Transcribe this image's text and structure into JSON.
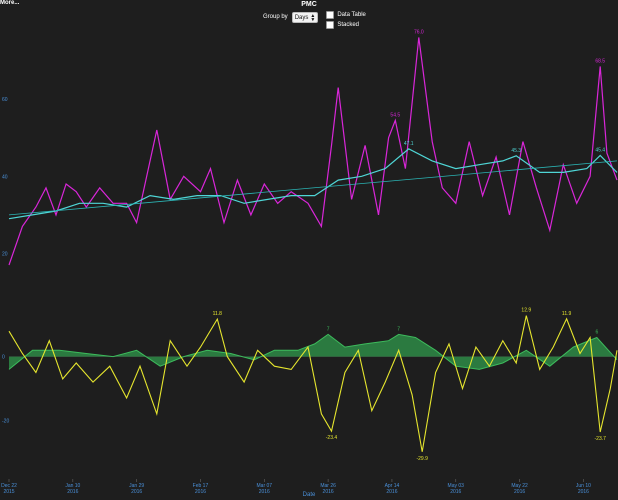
{
  "toolbar": {
    "more_label": "More...",
    "title": "PMC",
    "group_by_label": "Group by",
    "group_by_value": "Days",
    "data_table_label": "Data Table",
    "stacked_label": "Stacked"
  },
  "chart_data": {
    "type": "line",
    "title": "PMC",
    "xlabel": "Date",
    "ylabel": "",
    "x_ticks": [
      {
        "date": "2015-12-22",
        "label": "Dec 22",
        "sub": "2015"
      },
      {
        "date": "2016-01-10",
        "label": "Jan 10",
        "sub": "2016"
      },
      {
        "date": "2016-01-29",
        "label": "Jan 29",
        "sub": "2016"
      },
      {
        "date": "2016-02-17",
        "label": "Feb 17",
        "sub": "2016"
      },
      {
        "date": "2016-03-07",
        "label": "Mar 07",
        "sub": "2016"
      },
      {
        "date": "2016-03-26",
        "label": "Mar 26",
        "sub": "2016"
      },
      {
        "date": "2016-04-14",
        "label": "Apr 14",
        "sub": "2016"
      },
      {
        "date": "2016-05-03",
        "label": "May 03",
        "sub": "2016"
      },
      {
        "date": "2016-05-22",
        "label": "May 22",
        "sub": "2016"
      },
      {
        "date": "2016-06-10",
        "label": "Jun 10",
        "sub": "2016"
      }
    ],
    "x_range": [
      "2015-12-22",
      "2016-06-20"
    ],
    "upper_panel": {
      "ylim": [
        10,
        80
      ],
      "y_ticks": [
        20,
        40,
        60
      ],
      "series": [
        {
          "color": "#d926d9",
          "points": [
            [
              "2015-12-22",
              17
            ],
            [
              "2015-12-26",
              27
            ],
            [
              "2015-12-30",
              32
            ],
            [
              "2016-01-02",
              37
            ],
            [
              "2016-01-05",
              30
            ],
            [
              "2016-01-08",
              38
            ],
            [
              "2016-01-11",
              36
            ],
            [
              "2016-01-14",
              32
            ],
            [
              "2016-01-18",
              37
            ],
            [
              "2016-01-22",
              33
            ],
            [
              "2016-01-26",
              33
            ],
            [
              "2016-01-29",
              28
            ],
            [
              "2016-02-01",
              40
            ],
            [
              "2016-02-04",
              52
            ],
            [
              "2016-02-08",
              34
            ],
            [
              "2016-02-12",
              40
            ],
            [
              "2016-02-17",
              36
            ],
            [
              "2016-02-20",
              42
            ],
            [
              "2016-02-24",
              28
            ],
            [
              "2016-02-28",
              39
            ],
            [
              "2016-03-03",
              30
            ],
            [
              "2016-03-07",
              38
            ],
            [
              "2016-03-11",
              33
            ],
            [
              "2016-03-15",
              36
            ],
            [
              "2016-03-20",
              33
            ],
            [
              "2016-03-24",
              27
            ],
            [
              "2016-03-27",
              48
            ],
            [
              "2016-03-29",
              63
            ],
            [
              "2016-04-02",
              34
            ],
            [
              "2016-04-06",
              48
            ],
            [
              "2016-04-10",
              30
            ],
            [
              "2016-04-13",
              50
            ],
            [
              "2016-04-15",
              54.5
            ],
            [
              "2016-04-18",
              42
            ],
            [
              "2016-04-22",
              76.0
            ],
            [
              "2016-04-26",
              49
            ],
            [
              "2016-04-29",
              37
            ],
            [
              "2016-05-03",
              33
            ],
            [
              "2016-05-07",
              49
            ],
            [
              "2016-05-11",
              35
            ],
            [
              "2016-05-15",
              45
            ],
            [
              "2016-05-19",
              30
            ],
            [
              "2016-05-23",
              49
            ],
            [
              "2016-05-27",
              37
            ],
            [
              "2016-05-31",
              26
            ],
            [
              "2016-06-04",
              43
            ],
            [
              "2016-06-08",
              33
            ],
            [
              "2016-06-12",
              40
            ],
            [
              "2016-06-15",
              68.5
            ],
            [
              "2016-06-17",
              46
            ],
            [
              "2016-06-20",
              39
            ]
          ]
        },
        {
          "color": "#4fd6d6",
          "points": [
            [
              "2015-12-22",
              29
            ],
            [
              "2015-12-29",
              30
            ],
            [
              "2016-01-05",
              31
            ],
            [
              "2016-01-12",
              33
            ],
            [
              "2016-01-19",
              33
            ],
            [
              "2016-01-26",
              32
            ],
            [
              "2016-02-02",
              35
            ],
            [
              "2016-02-09",
              34
            ],
            [
              "2016-02-16",
              35
            ],
            [
              "2016-02-23",
              35
            ],
            [
              "2016-03-01",
              33
            ],
            [
              "2016-03-08",
              34
            ],
            [
              "2016-03-15",
              35
            ],
            [
              "2016-03-22",
              35
            ],
            [
              "2016-03-29",
              39
            ],
            [
              "2016-04-05",
              40
            ],
            [
              "2016-04-12",
              42
            ],
            [
              "2016-04-19",
              47.1
            ],
            [
              "2016-04-26",
              44
            ],
            [
              "2016-05-03",
              42
            ],
            [
              "2016-05-10",
              43
            ],
            [
              "2016-05-17",
              44
            ],
            [
              "2016-05-21",
              45.3
            ],
            [
              "2016-05-28",
              41
            ],
            [
              "2016-06-04",
              41
            ],
            [
              "2016-06-11",
              42
            ],
            [
              "2016-06-15",
              45.4
            ],
            [
              "2016-06-20",
              41
            ]
          ]
        },
        {
          "color": "#2bb5b5",
          "points": [
            [
              "2015-12-22",
              30
            ],
            [
              "2016-06-20",
              44
            ]
          ]
        }
      ],
      "labels": [
        {
          "date": "2016-04-15",
          "value": 54.5,
          "text": "54.5",
          "color": "#d926d9"
        },
        {
          "date": "2016-04-22",
          "value": 76.0,
          "text": "76.0",
          "color": "#d926d9"
        },
        {
          "date": "2016-06-15",
          "value": 68.5,
          "text": "68.5",
          "color": "#d926d9"
        },
        {
          "date": "2016-04-19",
          "value": 47.1,
          "text": "47.1",
          "color": "#4fd6d6"
        },
        {
          "date": "2016-05-21",
          "value": 45.3,
          "text": "45.3",
          "color": "#4fd6d6"
        },
        {
          "date": "2016-06-15",
          "value": 45.4,
          "text": "45.4",
          "color": "#4fd6d6"
        }
      ]
    },
    "lower_panel": {
      "ylim": [
        -35,
        20
      ],
      "y_ticks": [
        0,
        -20
      ],
      "series": [
        {
          "color": "#e6e62e",
          "points": [
            [
              "2015-12-22",
              8
            ],
            [
              "2015-12-26",
              1
            ],
            [
              "2015-12-30",
              -5
            ],
            [
              "2016-01-03",
              5
            ],
            [
              "2016-01-07",
              -7
            ],
            [
              "2016-01-11",
              -2
            ],
            [
              "2016-01-16",
              -8
            ],
            [
              "2016-01-21",
              -3
            ],
            [
              "2016-01-26",
              -13
            ],
            [
              "2016-01-30",
              -3
            ],
            [
              "2016-02-04",
              -18
            ],
            [
              "2016-02-08",
              5
            ],
            [
              "2016-02-13",
              -3
            ],
            [
              "2016-02-17",
              3
            ],
            [
              "2016-02-22",
              11.8
            ],
            [
              "2016-02-25",
              0
            ],
            [
              "2016-03-01",
              -8
            ],
            [
              "2016-03-05",
              2
            ],
            [
              "2016-03-10",
              -3
            ],
            [
              "2016-03-15",
              -4
            ],
            [
              "2016-03-20",
              3
            ],
            [
              "2016-03-24",
              -18
            ],
            [
              "2016-03-27",
              -23.4
            ],
            [
              "2016-03-31",
              -5
            ],
            [
              "2016-04-04",
              2
            ],
            [
              "2016-04-08",
              -17
            ],
            [
              "2016-04-12",
              -8
            ],
            [
              "2016-04-16",
              2
            ],
            [
              "2016-04-20",
              -12
            ],
            [
              "2016-04-23",
              -29.9
            ],
            [
              "2016-04-27",
              -5
            ],
            [
              "2016-05-01",
              4
            ],
            [
              "2016-05-05",
              -10
            ],
            [
              "2016-05-09",
              3
            ],
            [
              "2016-05-13",
              -3
            ],
            [
              "2016-05-17",
              5
            ],
            [
              "2016-05-21",
              -2
            ],
            [
              "2016-05-24",
              12.9
            ],
            [
              "2016-05-28",
              -4
            ],
            [
              "2016-06-01",
              3
            ],
            [
              "2016-06-05",
              11.9
            ],
            [
              "2016-06-09",
              1
            ],
            [
              "2016-06-12",
              6
            ],
            [
              "2016-06-15",
              -23.7
            ],
            [
              "2016-06-18",
              -10
            ],
            [
              "2016-06-20",
              2
            ]
          ]
        },
        {
          "color": "#3dbb5c",
          "fill": "#2e8b47",
          "points": [
            [
              "2015-12-22",
              -4
            ],
            [
              "2015-12-29",
              2
            ],
            [
              "2016-01-06",
              2
            ],
            [
              "2016-01-14",
              1
            ],
            [
              "2016-01-22",
              0
            ],
            [
              "2016-01-29",
              2
            ],
            [
              "2016-02-05",
              -3
            ],
            [
              "2016-02-12",
              0
            ],
            [
              "2016-02-19",
              2
            ],
            [
              "2016-02-26",
              1
            ],
            [
              "2016-03-04",
              -1
            ],
            [
              "2016-03-10",
              2
            ],
            [
              "2016-03-17",
              2
            ],
            [
              "2016-03-22",
              4
            ],
            [
              "2016-03-26",
              7
            ],
            [
              "2016-03-31",
              3
            ],
            [
              "2016-04-06",
              4
            ],
            [
              "2016-04-13",
              5
            ],
            [
              "2016-04-16",
              7
            ],
            [
              "2016-04-21",
              6
            ],
            [
              "2016-04-27",
              2
            ],
            [
              "2016-05-03",
              -3
            ],
            [
              "2016-05-10",
              -4
            ],
            [
              "2016-05-17",
              -2
            ],
            [
              "2016-05-24",
              2
            ],
            [
              "2016-05-31",
              -3
            ],
            [
              "2016-06-07",
              3
            ],
            [
              "2016-06-14",
              6
            ],
            [
              "2016-06-20",
              -1
            ]
          ]
        }
      ],
      "labels": [
        {
          "date": "2016-02-22",
          "value": 11.8,
          "text": "11.8",
          "color": "#e6e62e"
        },
        {
          "date": "2016-03-27",
          "value": -23.4,
          "text": "-23.4",
          "color": "#e6e62e"
        },
        {
          "date": "2016-04-23",
          "value": -29.9,
          "text": "-29.9",
          "color": "#e6e62e"
        },
        {
          "date": "2016-05-24",
          "value": 12.9,
          "text": "12.9",
          "color": "#e6e62e"
        },
        {
          "date": "2016-06-05",
          "value": 11.9,
          "text": "11.9",
          "color": "#e6e62e"
        },
        {
          "date": "2016-06-15",
          "value": -23.7,
          "text": "-23.7",
          "color": "#e6e62e"
        },
        {
          "date": "2016-03-26",
          "value": 7,
          "text": "7",
          "color": "#3dbb5c"
        },
        {
          "date": "2016-04-16",
          "value": 7,
          "text": "7",
          "color": "#3dbb5c"
        },
        {
          "date": "2016-06-14",
          "value": 6,
          "text": "6",
          "color": "#3dbb5c"
        }
      ]
    }
  }
}
